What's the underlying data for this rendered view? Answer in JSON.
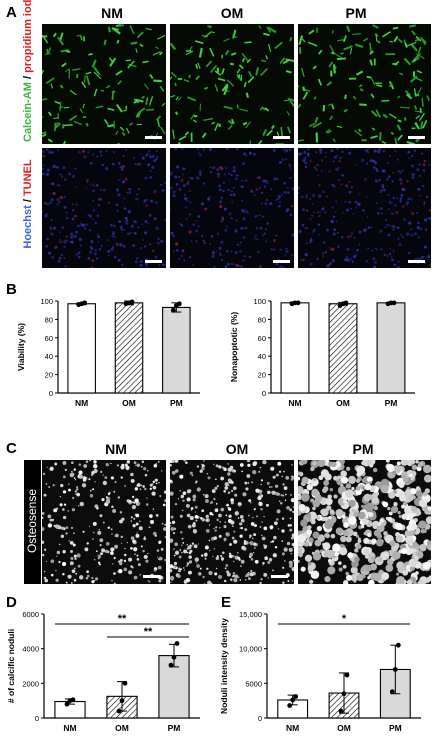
{
  "panels": {
    "A": "A",
    "B": "B",
    "C": "C",
    "D": "D",
    "E": "E"
  },
  "groups": [
    "NM",
    "OM",
    "PM"
  ],
  "panel_a": {
    "row1_label_part1": "Calcein-AM",
    "row1_label_sep": " / ",
    "row1_label_part2": "propidium iodide",
    "row2_label_part1": "Hoechst",
    "row2_label_sep": " / ",
    "row2_label_part2": "TUNEL",
    "colors": {
      "calcein": "#3cb43c",
      "propidium": "#e01e1e",
      "hoechst": "#3c64dc",
      "tunel": "#e01e1e"
    }
  },
  "panel_c": {
    "side_label": "Osteosense"
  },
  "chart_data": [
    {
      "type": "bar",
      "panel": "B-left",
      "categories": [
        "NM",
        "OM",
        "PM"
      ],
      "values": [
        97,
        98,
        93
      ],
      "error": [
        1,
        2,
        5
      ],
      "points": [
        [
          96,
          97,
          98
        ],
        [
          97,
          98,
          99
        ],
        [
          90,
          95,
          97
        ]
      ],
      "fills": [
        "white",
        "hatched",
        "lightgray"
      ],
      "ylabel": "Viability (%)",
      "ylim": [
        0,
        100
      ],
      "yticks": [
        0,
        20,
        40,
        60,
        80,
        100
      ]
    },
    {
      "type": "bar",
      "panel": "B-right",
      "categories": [
        "NM",
        "OM",
        "PM"
      ],
      "values": [
        98,
        97,
        98
      ],
      "error": [
        1,
        1.5,
        0.5
      ],
      "points": [
        [
          97,
          98,
          98
        ],
        [
          95,
          97,
          98
        ],
        [
          97,
          98,
          98
        ]
      ],
      "fills": [
        "white",
        "hatched",
        "lightgray"
      ],
      "ylabel": "Nonapoptotic (%)",
      "ylim": [
        0,
        100
      ],
      "yticks": [
        0,
        20,
        40,
        60,
        80,
        100
      ]
    },
    {
      "type": "bar",
      "panel": "D",
      "categories": [
        "NM",
        "OM",
        "PM"
      ],
      "values": [
        950,
        1250,
        3600
      ],
      "error": [
        150,
        850,
        650
      ],
      "points": [
        [
          800,
          1000,
          1050
        ],
        [
          400,
          1000,
          2000
        ],
        [
          3050,
          3500,
          4300
        ]
      ],
      "fills": [
        "white",
        "hatched",
        "lightgray"
      ],
      "ylabel": "# of calcific noduli",
      "ylim": [
        0,
        6000
      ],
      "yticks": [
        0,
        2000,
        4000,
        6000
      ],
      "significance": [
        {
          "from": "NM",
          "to": "PM",
          "label": "**"
        },
        {
          "from": "OM",
          "to": "PM",
          "label": "**"
        }
      ]
    },
    {
      "type": "bar",
      "panel": "E",
      "categories": [
        "NM",
        "OM",
        "PM"
      ],
      "values": [
        2600,
        3600,
        7000
      ],
      "error": [
        700,
        2900,
        3500
      ],
      "points": [
        [
          1800,
          2600,
          3100
        ],
        [
          1000,
          3500,
          6200
        ],
        [
          3800,
          7000,
          10500
        ]
      ],
      "fills": [
        "white",
        "hatched",
        "lightgray"
      ],
      "ylabel": "Noduli intensity density",
      "ylim": [
        0,
        15000
      ],
      "yticks": [
        0,
        5000,
        10000,
        15000
      ],
      "ytick_labels": [
        "0",
        "5000",
        "10,000",
        "15,000"
      ],
      "significance": [
        {
          "from": "NM",
          "to": "PM",
          "label": "*"
        }
      ]
    }
  ]
}
